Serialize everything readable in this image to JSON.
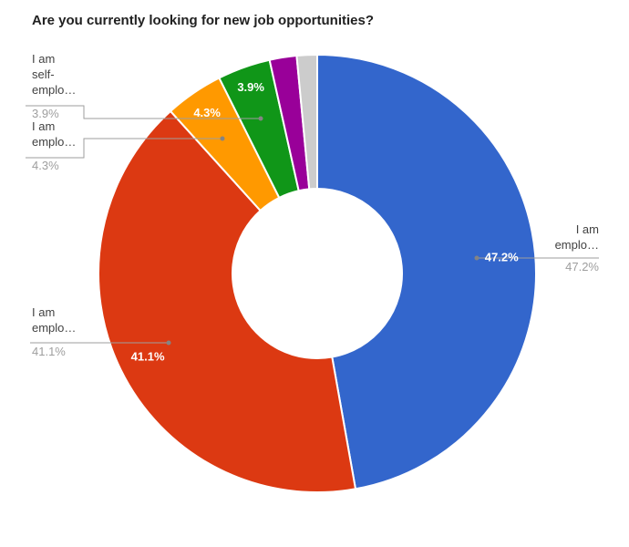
{
  "title": "Are you currently looking for new job opportunities?",
  "chart_data": {
    "type": "pie",
    "donut": true,
    "hole_ratio": 0.39,
    "start_angle_deg": 0,
    "direction": "clockwise",
    "title": "Are you currently looking for new job opportunities?",
    "legend_position": "labeled-callouts",
    "grid": false,
    "slices": [
      {
        "name": "I am emplo…",
        "value_pct": 47.2,
        "pct_label": "47.2%",
        "color": "#3366CC",
        "callout": {
          "lines": [
            "I am",
            "emplo…"
          ],
          "pct": "47.2%"
        }
      },
      {
        "name": "I am emplo…",
        "value_pct": 41.1,
        "pct_label": "41.1%",
        "color": "#DC3912",
        "callout": {
          "lines": [
            "I am",
            "emplo…"
          ],
          "pct": "41.1%"
        }
      },
      {
        "name": "I am emplo…",
        "value_pct": 4.3,
        "pct_label": "4.3%",
        "color": "#FF9900",
        "callout": {
          "lines": [
            "I am",
            "emplo…"
          ],
          "pct": "4.3%"
        }
      },
      {
        "name": "I am self-emplo…",
        "value_pct": 3.9,
        "pct_label": "3.9%",
        "color": "#109618",
        "callout": {
          "lines": [
            "I am",
            "self-",
            "emplo…"
          ],
          "pct": "3.9%"
        }
      },
      {
        "name": "",
        "value_pct": 2.0,
        "estimated": true,
        "pct_label": "",
        "color": "#990099"
      },
      {
        "name": "",
        "value_pct": 1.5,
        "estimated": true,
        "pct_label": "",
        "color": "#CCCCCC"
      }
    ],
    "colors": {
      "label_text": "#424242",
      "pct_text": "#9e9e9e",
      "callout_line": "#9e9e9e",
      "callout_dot": "#848484",
      "slice_label_text": "#ffffff",
      "slice_separator": "#ffffff"
    }
  }
}
